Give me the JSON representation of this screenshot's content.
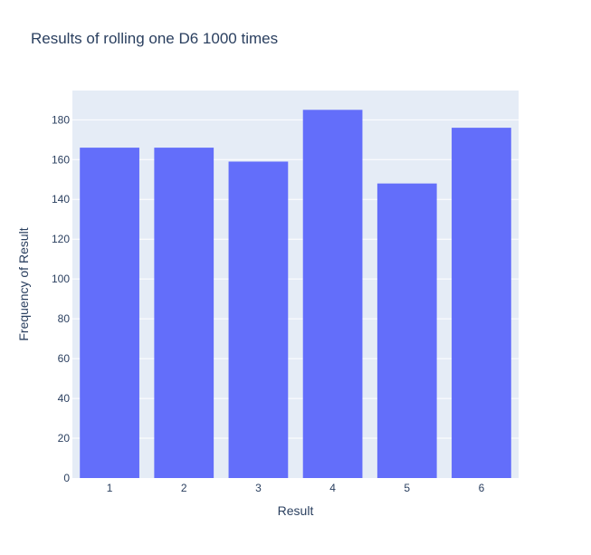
{
  "chart_data": {
    "type": "bar",
    "title": "Results of rolling one D6 1000 times",
    "xlabel": "Result",
    "ylabel": "Frequency of Result",
    "categories": [
      "1",
      "2",
      "3",
      "4",
      "5",
      "6"
    ],
    "values": [
      166,
      166,
      159,
      185,
      148,
      176
    ],
    "yticks": [
      0,
      20,
      40,
      60,
      80,
      100,
      120,
      140,
      160,
      180
    ],
    "ylim": [
      0,
      194.7
    ],
    "grid": true,
    "bar_color": "#636efa",
    "plot_background": "#e5ecf6",
    "text_color": "#2a3f5f"
  }
}
